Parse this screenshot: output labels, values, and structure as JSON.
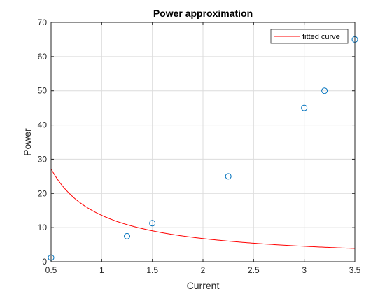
{
  "chart_data": {
    "type": "scatter",
    "title": "Power approximation",
    "xlabel": "Current",
    "ylabel": "Power",
    "xlim": [
      0.5,
      3.5
    ],
    "ylim": [
      0,
      70
    ],
    "xticks": [
      "0.5",
      "1",
      "1.5",
      "2",
      "2.5",
      "3",
      "3.5"
    ],
    "xtick_values": [
      0.5,
      1,
      1.5,
      2,
      2.5,
      3,
      3.5
    ],
    "yticks": [
      "0",
      "10",
      "20",
      "30",
      "40",
      "50",
      "60",
      "70"
    ],
    "ytick_values": [
      0,
      10,
      20,
      30,
      40,
      50,
      60,
      70
    ],
    "grid": true,
    "legend_position": "top-right",
    "points": {
      "x": [
        0.5,
        1.25,
        1.5,
        2.25,
        3.0,
        3.2,
        3.5
      ],
      "y": [
        1.2,
        7.5,
        11.3,
        25.0,
        45.0,
        50.0,
        65.0
      ],
      "color": "#0072BD",
      "marker": "circle"
    },
    "fitted_curve": {
      "name": "fitted curve",
      "color": "#FF0000",
      "a": 13.6,
      "b": -1.0
    }
  }
}
